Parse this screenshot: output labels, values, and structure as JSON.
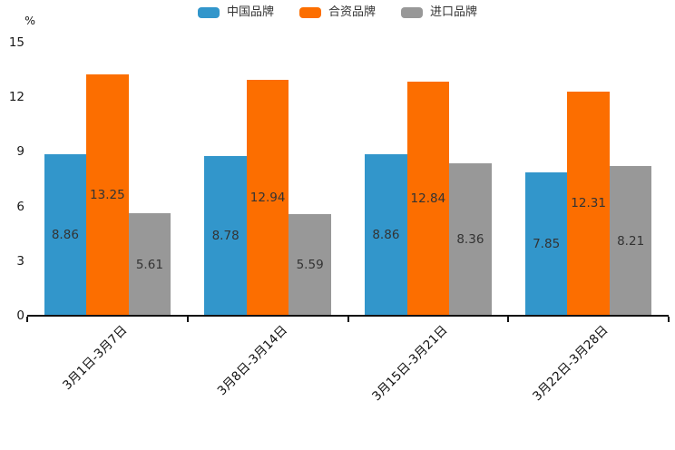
{
  "chart_data": {
    "type": "bar",
    "title": "",
    "ylabel": "%",
    "ylim": [
      0,
      15
    ],
    "yticks": [
      0,
      3,
      6,
      9,
      12,
      15
    ],
    "grid": false,
    "legend_position": "top-center",
    "value_label_position": "inside-center",
    "categories": [
      "3月1日-3月7日",
      "3月8日-3月14日",
      "3月15日-3月21日",
      "3月22日-3月28日"
    ],
    "series": [
      {
        "name": "中国品牌",
        "color": "#3296CB",
        "values": [
          8.86,
          8.78,
          8.86,
          7.85
        ]
      },
      {
        "name": "合资品牌",
        "color": "#FC6E00",
        "values": [
          13.25,
          12.94,
          12.84,
          12.31
        ]
      },
      {
        "name": "进口品牌",
        "color": "#989898",
        "values": [
          5.61,
          5.59,
          8.36,
          8.21
        ]
      }
    ]
  }
}
